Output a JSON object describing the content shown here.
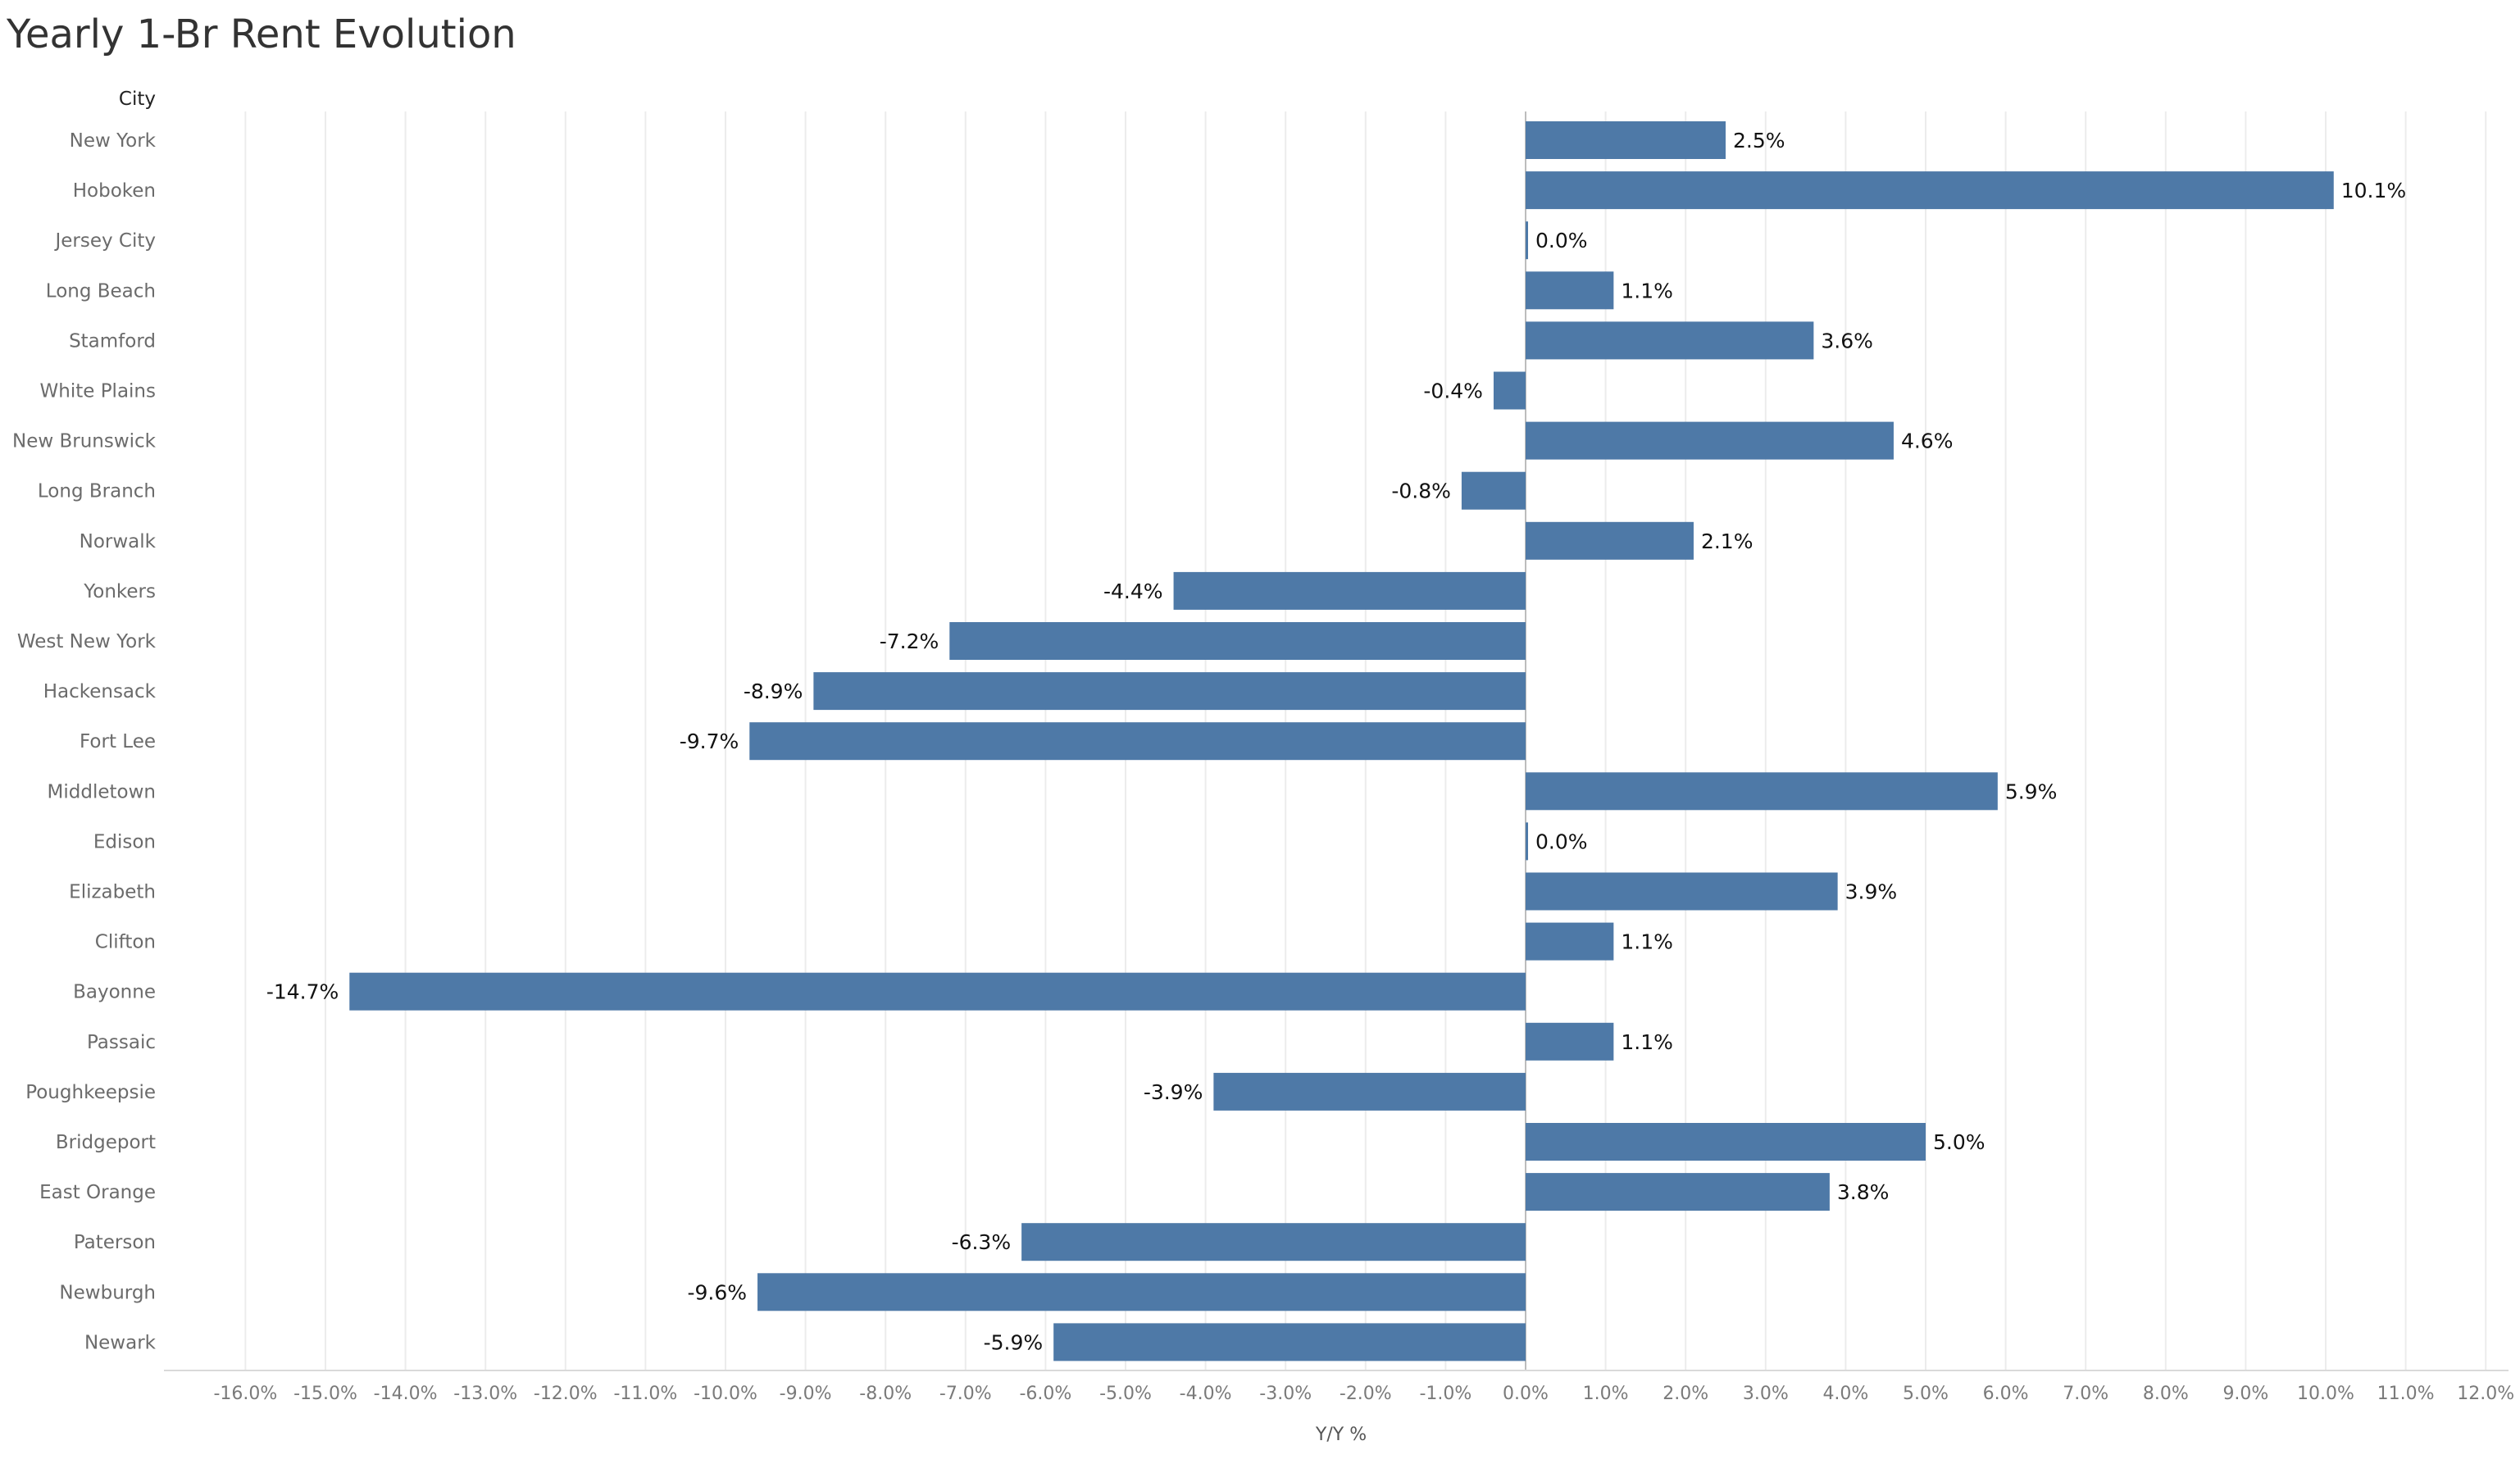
{
  "chart_data": {
    "type": "bar",
    "orientation": "horizontal",
    "title": "Yearly 1-Br Rent Evolution",
    "row_header": "City",
    "xlabel": "Y/Y %",
    "xlim": [
      -16,
      12
    ],
    "x_ticks": [
      "-16.0%",
      "-15.0%",
      "-14.0%",
      "-13.0%",
      "-12.0%",
      "-11.0%",
      "-10.0%",
      "-9.0%",
      "-8.0%",
      "-7.0%",
      "-6.0%",
      "-5.0%",
      "-4.0%",
      "-3.0%",
      "-2.0%",
      "-1.0%",
      "0.0%",
      "1.0%",
      "2.0%",
      "3.0%",
      "4.0%",
      "5.0%",
      "6.0%",
      "7.0%",
      "8.0%",
      "9.0%",
      "10.0%",
      "11.0%",
      "12.0%"
    ],
    "grid": "vertical",
    "bar_color": "#4e79a7",
    "categories": [
      "New York",
      "Hoboken",
      "Jersey City",
      "Long Beach",
      "Stamford",
      "White Plains",
      "New Brunswick",
      "Long Branch",
      "Norwalk",
      "Yonkers",
      "West New York",
      "Hackensack",
      "Fort Lee",
      "Middletown",
      "Edison",
      "Elizabeth",
      "Clifton",
      "Bayonne",
      "Passaic",
      "Poughkeepsie",
      "Bridgeport",
      "East Orange",
      "Paterson",
      "Newburgh",
      "Newark"
    ],
    "values": [
      2.5,
      10.1,
      0.0,
      1.1,
      3.6,
      -0.4,
      4.6,
      -0.8,
      2.1,
      -4.4,
      -7.2,
      -8.9,
      -9.7,
      5.9,
      0.0,
      3.9,
      1.1,
      -14.7,
      1.1,
      -3.9,
      5.0,
      3.8,
      -6.3,
      -9.6,
      -5.9
    ],
    "data_labels": [
      "2.5%",
      "10.1%",
      "0.0%",
      "1.1%",
      "3.6%",
      "-0.4%",
      "4.6%",
      "-0.8%",
      "2.1%",
      "-4.4%",
      "-7.2%",
      "-8.9%",
      "-9.7%",
      "5.9%",
      "0.0%",
      "3.9%",
      "1.1%",
      "-14.7%",
      "1.1%",
      "-3.9%",
      "5.0%",
      "3.8%",
      "-6.3%",
      "-9.6%",
      "-5.9%"
    ]
  }
}
